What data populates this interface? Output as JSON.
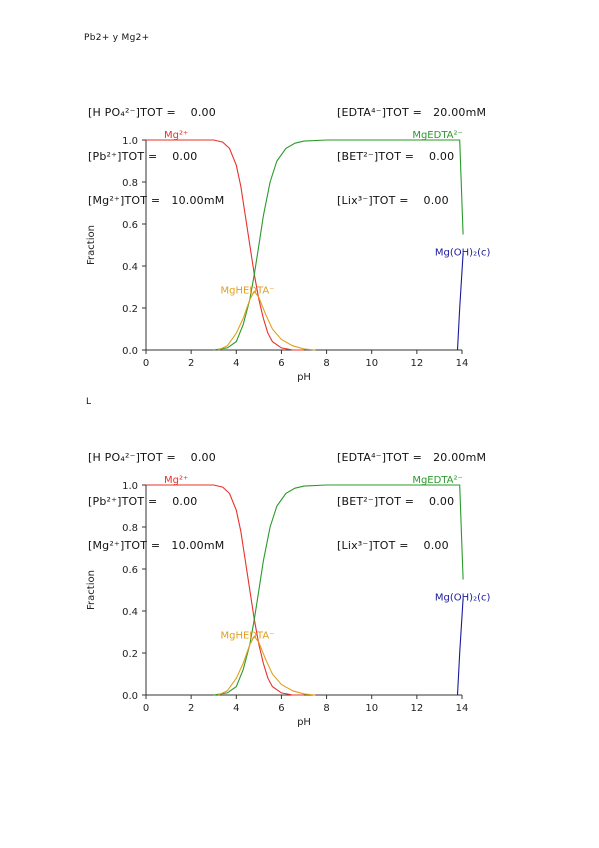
{
  "page": {
    "title": "Pb2+  y Mg2+",
    "second_label": "L"
  },
  "colors": {
    "Mg2+": "#e8312a",
    "MgEDTA2-": "#2a9a2a",
    "MgHEDTA-": "#e0a020",
    "Mg(OH)2(c)": "#1a1a9a",
    "axis": "#333333"
  },
  "panels": [
    {
      "conc_left": [
        "[H PO₄²⁻]TOT =    0.00",
        "[Pb²⁺]TOT =    0.00",
        "[Mg²⁺]TOT =   10.00mM"
      ],
      "conc_right": [
        "[EDTA⁴⁻]TOT =   20.00mM",
        "[BET²⁻]TOT =    0.00",
        "[Lix³⁻]TOT =    0.00"
      ]
    },
    {
      "conc_left": [
        "[H PO₄²⁻]TOT =    0.00",
        "[Pb²⁺]TOT =    0.00",
        "[Mg²⁺]TOT =   10.00mM"
      ],
      "conc_right": [
        "[EDTA⁴⁻]TOT =   20.00mM",
        "[BET²⁻]TOT =    0.00",
        "[Lix³⁻]TOT =    0.00"
      ]
    }
  ],
  "chart_data": [
    {
      "type": "line",
      "xlabel": "pH",
      "ylabel": "Fraction",
      "xlim": [
        0,
        14
      ],
      "ylim": [
        0,
        1
      ],
      "x_ticks": [
        "0",
        "2",
        "4",
        "6",
        "8",
        "10",
        "12",
        "14"
      ],
      "y_ticks": [
        "0.0",
        "0.2",
        "0.4",
        "0.6",
        "0.8",
        "1.0"
      ],
      "series": [
        {
          "name": "Mg²⁺",
          "color_key": "Mg2+",
          "label_pos": [
            0.8,
            1.01
          ],
          "x": [
            0,
            2,
            3.0,
            3.4,
            3.7,
            4.0,
            4.2,
            4.4,
            4.6,
            4.8,
            5.0,
            5.2,
            5.4,
            5.6,
            6.0,
            6.5,
            7.0
          ],
          "y": [
            1.0,
            1.0,
            1.0,
            0.99,
            0.96,
            0.88,
            0.78,
            0.64,
            0.5,
            0.36,
            0.24,
            0.15,
            0.08,
            0.04,
            0.01,
            0.0,
            0.0
          ]
        },
        {
          "name": "MgEDTA²⁻",
          "color_key": "MgEDTA2-",
          "label_pos": [
            11.8,
            1.01
          ],
          "x": [
            3.0,
            3.6,
            4.0,
            4.3,
            4.6,
            4.8,
            5.0,
            5.2,
            5.5,
            5.8,
            6.2,
            6.6,
            7.0,
            8.0,
            10.0,
            12.0,
            13.9,
            14.05
          ],
          "y": [
            0.0,
            0.01,
            0.04,
            0.12,
            0.24,
            0.36,
            0.5,
            0.64,
            0.8,
            0.9,
            0.96,
            0.985,
            0.995,
            1.0,
            1.0,
            1.0,
            1.0,
            0.55
          ]
        },
        {
          "name": "MgHEDTA⁻",
          "color_key": "MgHEDTA-",
          "label_pos": [
            3.3,
            0.27
          ],
          "x": [
            3.2,
            3.6,
            4.0,
            4.3,
            4.6,
            4.8,
            5.0,
            5.3,
            5.6,
            6.0,
            6.5,
            7.0,
            7.5
          ],
          "y": [
            0.0,
            0.02,
            0.08,
            0.15,
            0.24,
            0.28,
            0.25,
            0.17,
            0.1,
            0.05,
            0.02,
            0.005,
            0.0
          ]
        },
        {
          "name": "Mg(OH)₂(c)",
          "color_key": "Mg(OH)2(c)",
          "label_pos": [
            12.8,
            0.45
          ],
          "x": [
            13.8,
            13.9,
            14.05
          ],
          "y": [
            0.0,
            0.2,
            0.46
          ]
        }
      ]
    },
    {
      "type": "line",
      "xlabel": "pH",
      "ylabel": "Fraction",
      "xlim": [
        0,
        14
      ],
      "ylim": [
        0,
        1
      ],
      "x_ticks": [
        "0",
        "2",
        "4",
        "6",
        "8",
        "10",
        "12",
        "14"
      ],
      "y_ticks": [
        "0.0",
        "0.2",
        "0.4",
        "0.6",
        "0.8",
        "1.0"
      ],
      "series": [
        {
          "name": "Mg²⁺",
          "color_key": "Mg2+",
          "label_pos": [
            0.8,
            1.01
          ],
          "x": [
            0,
            2,
            3.0,
            3.4,
            3.7,
            4.0,
            4.2,
            4.4,
            4.6,
            4.8,
            5.0,
            5.2,
            5.4,
            5.6,
            6.0,
            6.5,
            7.0
          ],
          "y": [
            1.0,
            1.0,
            1.0,
            0.99,
            0.96,
            0.88,
            0.78,
            0.64,
            0.5,
            0.36,
            0.24,
            0.15,
            0.08,
            0.04,
            0.01,
            0.0,
            0.0
          ]
        },
        {
          "name": "MgEDTA²⁻",
          "color_key": "MgEDTA2-",
          "label_pos": [
            11.8,
            1.01
          ],
          "x": [
            3.0,
            3.6,
            4.0,
            4.3,
            4.6,
            4.8,
            5.0,
            5.2,
            5.5,
            5.8,
            6.2,
            6.6,
            7.0,
            8.0,
            10.0,
            12.0,
            13.9,
            14.05
          ],
          "y": [
            0.0,
            0.01,
            0.04,
            0.12,
            0.24,
            0.36,
            0.5,
            0.64,
            0.8,
            0.9,
            0.96,
            0.985,
            0.995,
            1.0,
            1.0,
            1.0,
            1.0,
            0.55
          ]
        },
        {
          "name": "MgHEDTA⁻",
          "color_key": "MgHEDTA-",
          "label_pos": [
            3.3,
            0.27
          ],
          "x": [
            3.2,
            3.6,
            4.0,
            4.3,
            4.6,
            4.8,
            5.0,
            5.3,
            5.6,
            6.0,
            6.5,
            7.0,
            7.5
          ],
          "y": [
            0.0,
            0.02,
            0.08,
            0.15,
            0.24,
            0.28,
            0.25,
            0.17,
            0.1,
            0.05,
            0.02,
            0.005,
            0.0
          ]
        },
        {
          "name": "Mg(OH)₂(c)",
          "color_key": "Mg(OH)2(c)",
          "label_pos": [
            12.8,
            0.45
          ],
          "x": [
            13.8,
            13.9,
            14.05
          ],
          "y": [
            0.0,
            0.2,
            0.46
          ]
        }
      ]
    }
  ]
}
